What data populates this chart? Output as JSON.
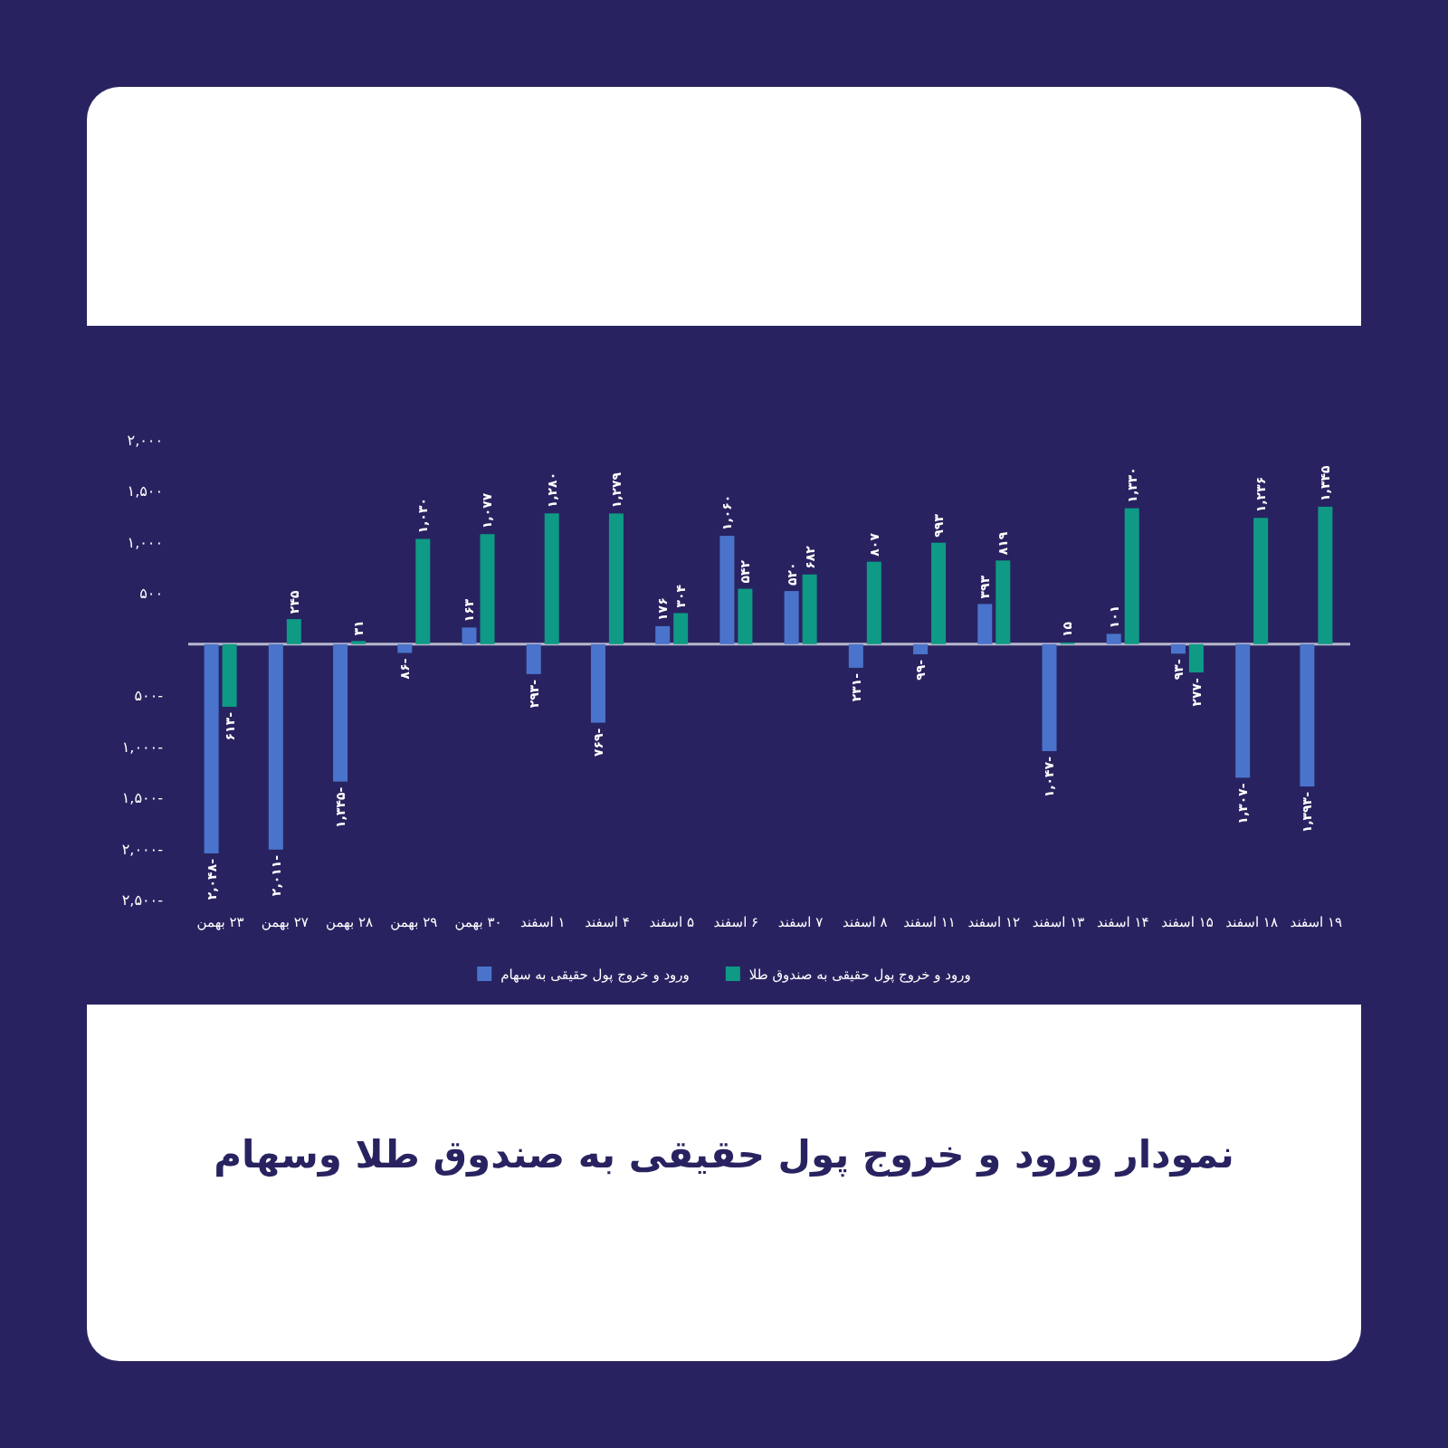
{
  "chart_data": {
    "type": "bar",
    "title": "نمودار ورود و خروج پول حقیقی به صندوق طلا وسهام",
    "categories": [
      "۲۳ بهمن",
      "۲۷ بهمن",
      "۲۸ بهمن",
      "۲۹ بهمن",
      "۳۰ بهمن",
      "۱ اسفند",
      "۴ اسفند",
      "۵ اسفند",
      "۶ اسفند",
      "۷ اسفند",
      "۸ اسفند",
      "۱۱ اسفند",
      "۱۲ اسفند",
      "۱۳ اسفند",
      "۱۴ اسفند",
      "۱۵ اسفند",
      "۱۸ اسفند",
      "۱۹ اسفند"
    ],
    "series": [
      {
        "name": "ورود و خروج پول حقیقی به سهام",
        "color": "#4a74cc",
        "values": [
          -2048,
          -2011,
          -1345,
          -86,
          163,
          -293,
          -769,
          176,
          1060,
          520,
          -231,
          -99,
          393,
          -1047,
          101,
          -93,
          -1307,
          -1393
        ],
        "value_labels": [
          "-۲,۰۴۸",
          "-۲,۰۱۱",
          "-۱,۳۴۵",
          "-۸۶",
          "۱۶۳",
          "-۲۹۳",
          "-۷۶۹",
          "۱۷۶",
          "۱,۰۶۰",
          "۵۲۰",
          "-۲۳۱",
          "-۹۹",
          "۳۹۳",
          "-۱,۰۴۷",
          "۱۰۱",
          "-۹۳",
          "-۱,۳۰۷",
          "-۱,۳۹۳"
        ]
      },
      {
        "name": "ورود و خروج پول حقیقی به صندوق طلا",
        "color": "#0f9a86",
        "values": [
          -613,
          245,
          31,
          1030,
          1077,
          1280,
          1279,
          304,
          542,
          682,
          807,
          993,
          819,
          15,
          1330,
          -277,
          1236,
          1345
        ],
        "value_labels": [
          "-۶۱۳",
          "۲۴۵",
          "۳۱",
          "۱,۰۳۰",
          "۱,۰۷۷",
          "۱,۲۸۰",
          "۱,۲۷۹",
          "۳۰۴",
          "۵۴۲",
          "۶۸۲",
          "۸۰۷",
          "۹۹۳",
          "۸۱۹",
          "۱۵",
          "۱,۳۳۰",
          "-۲۷۷",
          "۱,۲۳۶",
          "۱,۳۴۵"
        ]
      }
    ],
    "ylim": [
      -2500,
      2000
    ],
    "yticks": [
      {
        "value": 2000,
        "label": "۲,۰۰۰"
      },
      {
        "value": 1500,
        "label": "۱,۵۰۰"
      },
      {
        "value": 1000,
        "label": "۱,۰۰۰"
      },
      {
        "value": 500,
        "label": "۵۰۰"
      },
      {
        "value": -500,
        "label": "-۵۰۰"
      },
      {
        "value": -1000,
        "label": "-۱,۰۰۰"
      },
      {
        "value": -1500,
        "label": "-۱,۵۰۰"
      },
      {
        "value": -2000,
        "label": "-۲,۰۰۰"
      },
      {
        "value": -2500,
        "label": "-۲,۵۰۰"
      }
    ],
    "legend": "bottom"
  }
}
